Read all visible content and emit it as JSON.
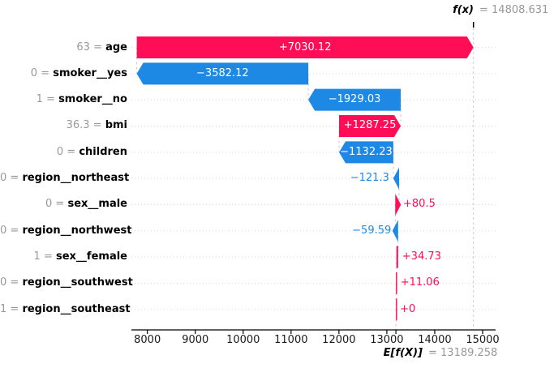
{
  "figure": {
    "fx_label": "f(x)",
    "fx_value_text": "= 14808.631",
    "base_label": "E[f(X)]",
    "base_value_text": "= 13189.258",
    "eq_sign": "="
  },
  "chart_data": {
    "type": "waterfall",
    "style": "shap-explanation-plot",
    "title": "",
    "fx_value": 14808.631,
    "base_value": 13189.258,
    "x_ticks": [
      8000,
      9000,
      10000,
      11000,
      12000,
      13000,
      14000,
      15000
    ],
    "xlim": [
      7650,
      15450
    ],
    "grid": "dotted horizontal row lines; dashed connectors between bars",
    "legend": "none",
    "features": [
      {
        "name": "age",
        "data_value": "63",
        "shap": 7030.12,
        "label": "+7030.12"
      },
      {
        "name": "smoker__yes",
        "data_value": "0",
        "shap": -3582.12,
        "label": "−3582.12"
      },
      {
        "name": "smoker__no",
        "data_value": "1",
        "shap": -1929.03,
        "label": "−1929.03"
      },
      {
        "name": "bmi",
        "data_value": "36.3",
        "shap": 1287.25,
        "label": "+1287.25"
      },
      {
        "name": "children",
        "data_value": "0",
        "shap": -1132.23,
        "label": "−1132.23"
      },
      {
        "name": "region__northeast",
        "data_value": "0",
        "shap": -121.3,
        "label": "−121.3"
      },
      {
        "name": "sex__male",
        "data_value": "0",
        "shap": 80.5,
        "label": "+80.5"
      },
      {
        "name": "region__northwest",
        "data_value": "0",
        "shap": -59.59,
        "label": "−59.59"
      },
      {
        "name": "sex__female",
        "data_value": "1",
        "shap": 34.73,
        "label": "+34.73"
      },
      {
        "name": "region__southwest",
        "data_value": "0",
        "shap": 11.06,
        "label": "+11.06"
      },
      {
        "name": "region__southeast",
        "data_value": "1",
        "shap": 0,
        "label": "+0"
      }
    ],
    "colors": {
      "positive": "#ff0d57",
      "negative": "#1e88e5",
      "muted_text": "#999999",
      "grid_line": "#d8d8d8",
      "dashed_line": "#cccccc",
      "axis": "#000000"
    }
  }
}
